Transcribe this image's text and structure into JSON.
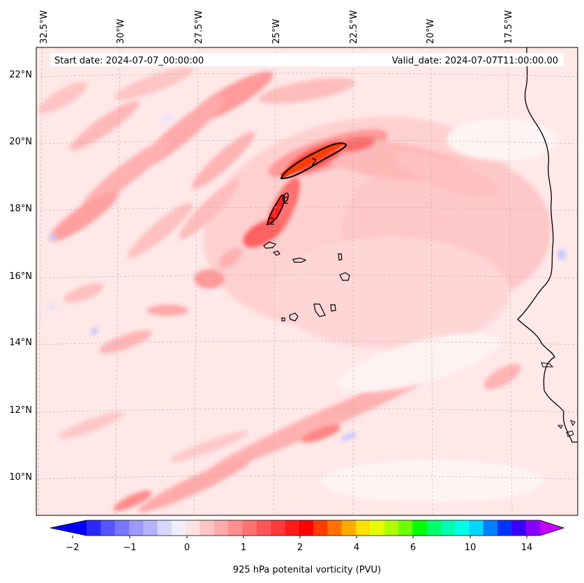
{
  "header": {
    "start_date": "Start date: 2024-07-07_00:00:00",
    "valid_date": "Valid_date: 2024-07-07T11:00:00.00"
  },
  "map": {
    "lon_ticks": [
      "32.5°W",
      "30°W",
      "27.5°W",
      "25°W",
      "22.5°W",
      "20°W",
      "17.5°W"
    ],
    "lat_ticks": [
      "22°N",
      "20°N",
      "18°N",
      "16°N",
      "14°N",
      "12°N",
      "10°N"
    ],
    "contour_labels": [
      "2",
      "2",
      "2"
    ],
    "colors": {
      "background": "#ffe8e8",
      "land_outline": "#000000",
      "gridline": "#b0b0b0"
    }
  },
  "colorbar": {
    "label": "925 hPa potenital vorticity (PVU)",
    "tick_labels": [
      "−2",
      "−1",
      "0",
      "1",
      "2",
      "4",
      "6",
      "10",
      "14"
    ],
    "colors": [
      "#0000ff",
      "#2a2aff",
      "#5555ff",
      "#7777ff",
      "#9999ff",
      "#b3b3ff",
      "#d6d6ff",
      "#efefff",
      "#ffe2e2",
      "#ffc5c5",
      "#ffaaaa",
      "#ff8e8e",
      "#ff7272",
      "#ff5555",
      "#ff3a3a",
      "#ff1c1c",
      "#ff0000",
      "#ff3c00",
      "#ff7200",
      "#ffaa00",
      "#ffe000",
      "#e6ff00",
      "#b0ff00",
      "#6cff00",
      "#00ff00",
      "#00ff6a",
      "#00ffb0",
      "#00ffe6",
      "#00d6ff",
      "#0080ff",
      "#0033ff",
      "#3a00ff",
      "#8800ff",
      "#c400ff"
    ]
  }
}
